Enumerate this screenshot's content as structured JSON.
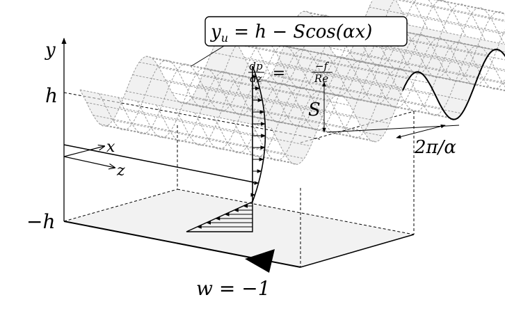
{
  "labels": {
    "axis_y": "y",
    "axis_x": "x",
    "axis_z": "z",
    "top_wall": "h",
    "bottom_wall": "−h",
    "amplitude": "S",
    "wavelength": "2π/α",
    "wall_velocity": "w = −1",
    "surface_eq": "y_u = h − Scos(αx)",
    "surface_eq_parts": {
      "y": "y",
      "sub": "u",
      "rest": " = h − Scos(αx)"
    },
    "pressure_gradient": {
      "num_left": "dp",
      "den_left": "dz",
      "equals": "=",
      "num_right": "−f",
      "den_right": "Re"
    }
  },
  "colors": {
    "ink": "#000000",
    "mesh": "#9a9a9a",
    "mesh_fill": "#e6e6e6",
    "wall_fill": "#f2f2f2"
  }
}
